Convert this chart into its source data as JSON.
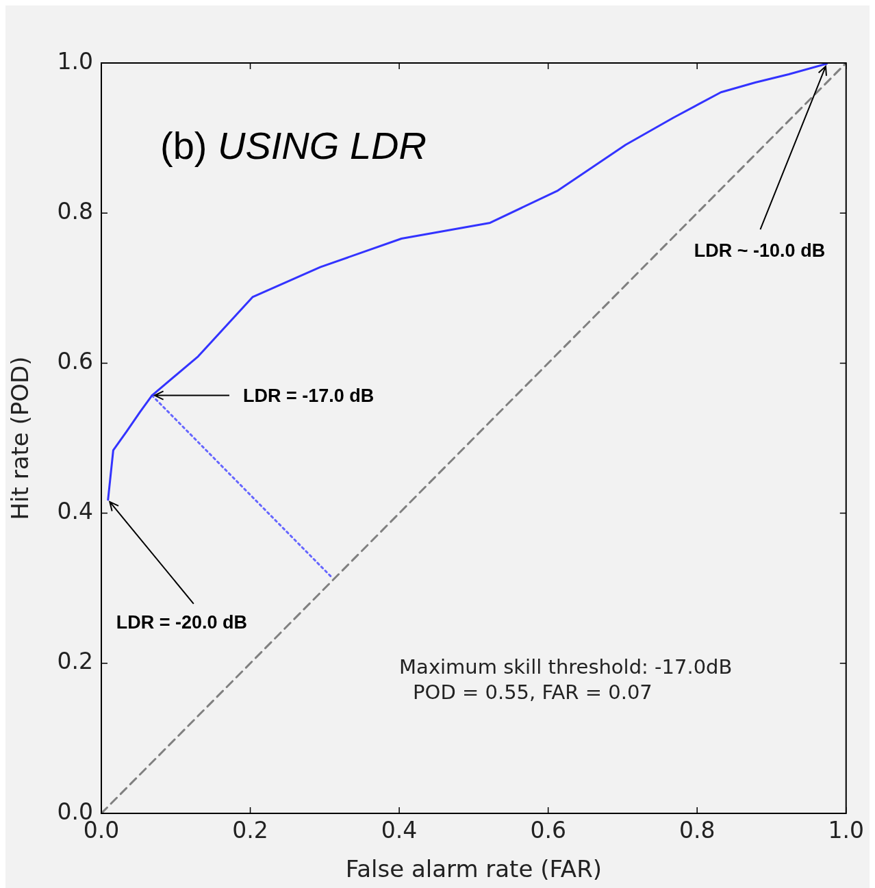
{
  "chart_data": {
    "type": "line",
    "title": "(b) USING LDR",
    "xlabel": "False alarm rate (FAR)",
    "ylabel": "Hit rate (POD)",
    "xlim": [
      0,
      1
    ],
    "ylim": [
      0,
      1
    ],
    "xticks": [
      {
        "value": 0,
        "label": "0.0"
      },
      {
        "value": 0.2,
        "label": "0.2"
      },
      {
        "value": 0.4,
        "label": "0.4"
      },
      {
        "value": 0.6,
        "label": "0.6"
      },
      {
        "value": 0.8,
        "label": "0.8"
      },
      {
        "value": 1,
        "label": "1.0"
      }
    ],
    "yticks": [
      {
        "value": 0,
        "label": "0.0"
      },
      {
        "value": 0.2,
        "label": "0.2"
      },
      {
        "value": 0.4,
        "label": "0.4"
      },
      {
        "value": 0.6,
        "label": "0.6"
      },
      {
        "value": 0.8,
        "label": "0.8"
      },
      {
        "value": 1,
        "label": "1.0"
      }
    ],
    "marker": "none",
    "series": [
      {
        "color": "#3333ff",
        "line_style": "solid",
        "x": [
          0.009,
          0.016,
          0.034,
          0.052,
          0.068,
          0.13,
          0.203,
          0.294,
          0.403,
          0.522,
          0.613,
          0.704,
          0.768,
          0.832,
          0.878,
          0.923,
          0.974
        ],
        "values": [
          0.418,
          0.484,
          0.509,
          0.535,
          0.557,
          0.609,
          0.688,
          0.728,
          0.766,
          0.787,
          0.83,
          0.891,
          0.927,
          0.961,
          0.974,
          0.985,
          0.999
        ]
      },
      {
        "color": "#6666ff",
        "line_style": "dotted",
        "x": [
          0.068,
          0.309
        ],
        "values": [
          0.557,
          0.315
        ]
      },
      {
        "color": "#808080",
        "line_style": "dashed",
        "x": [
          0,
          1
        ],
        "values": [
          0,
          1
        ]
      }
    ],
    "annotations": [
      {
        "text": "LDR = -17.0 dB",
        "x": 0.068,
        "y": 0.557
      },
      {
        "text": "LDR = -20.0 dB",
        "x": 0.009,
        "y": 0.418
      },
      {
        "text": "LDR ~ -10.0 dB",
        "x": 0.974,
        "y": 0.999
      },
      "Maximum skill threshold: -17.0dB",
      "POD = 0.55, FAR = 0.07"
    ]
  }
}
